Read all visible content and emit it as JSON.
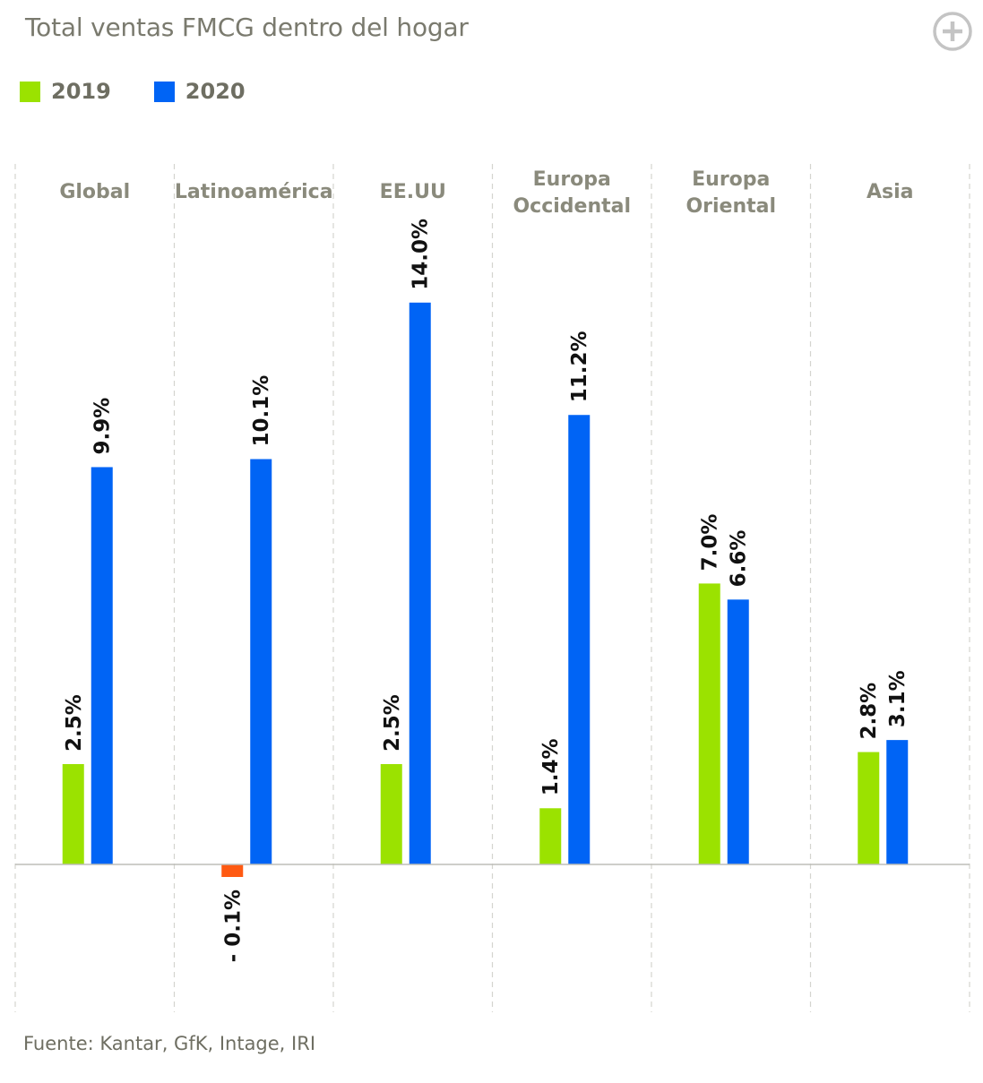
{
  "header": {
    "title": "Total ventas FMCG dentro del hogar",
    "add_icon": "plus-circle-icon"
  },
  "legend": [
    {
      "label": "2019",
      "color": "#9be200"
    },
    {
      "label": "2020",
      "color": "#0064f5"
    }
  ],
  "footer": {
    "source": "Fuente: Kantar, GfK, Intage, IRI"
  },
  "colors": {
    "negative": "#ff5a12",
    "axis": "#bdbdb8",
    "divider": "#d4d4cf"
  },
  "chart_data": {
    "type": "bar",
    "title": "Total ventas FMCG dentro del hogar",
    "categories": [
      [
        "Global"
      ],
      [
        "Latinoamérica"
      ],
      [
        "EE.UU"
      ],
      [
        "Europa",
        "Occidental"
      ],
      [
        "Europa",
        "Oriental"
      ],
      [
        "Asia"
      ]
    ],
    "series": [
      {
        "name": "2019",
        "values": [
          2.5,
          -0.1,
          2.5,
          1.4,
          7.0,
          2.8
        ],
        "labels": [
          "2.5%",
          "- 0.1%",
          "2.5%",
          "1.4%",
          "7.0%",
          "2.8%"
        ]
      },
      {
        "name": "2020",
        "values": [
          9.9,
          10.1,
          14.0,
          11.2,
          6.6,
          3.1
        ],
        "labels": [
          "9.9%",
          "10.1%",
          "14.0%",
          "11.2%",
          "6.6%",
          "3.1%"
        ]
      }
    ],
    "ylim": [
      -0.3,
      14.0
    ],
    "xlabel": "",
    "ylabel": "",
    "grid": false,
    "legend_position": "top-left"
  }
}
